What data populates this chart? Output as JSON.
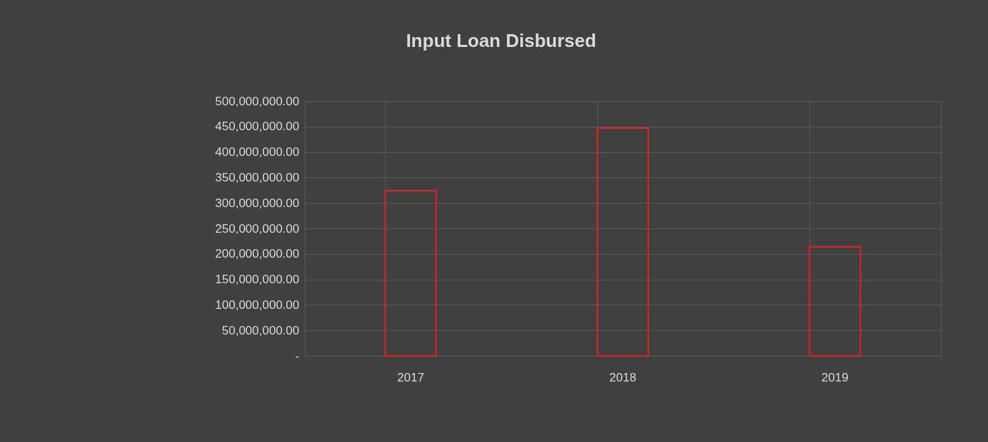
{
  "chart_data": {
    "type": "bar",
    "title": "Input Loan Disbursed",
    "categories": [
      "2017",
      "2018",
      "2019"
    ],
    "values": [
      324000000,
      447000000,
      214000000
    ],
    "color": "#e8201f",
    "ylim": [
      0,
      500000000
    ],
    "yticks": [
      {
        "value": 0,
        "label": "-"
      },
      {
        "value": 50000000,
        "label": "50,000,000.00"
      },
      {
        "value": 100000000,
        "label": "100,000,000.00"
      },
      {
        "value": 150000000,
        "label": "150,000,000.00"
      },
      {
        "value": 200000000,
        "label": "200,000,000.00"
      },
      {
        "value": 250000000,
        "label": "250,000,000.00"
      },
      {
        "value": 300000000,
        "label": "300,000,000.00"
      },
      {
        "value": 350000000,
        "label": "350,000,000.00"
      },
      {
        "value": 400000000,
        "label": "400,000,000.00"
      },
      {
        "value": 450000000,
        "label": "450,000,000.00"
      },
      {
        "value": 500000000,
        "label": "500,000,000.00"
      }
    ],
    "grid": true
  }
}
